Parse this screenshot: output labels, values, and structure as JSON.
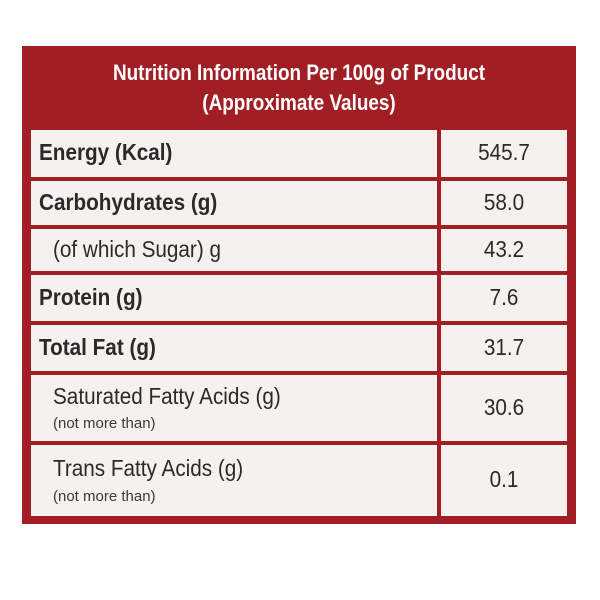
{
  "header": {
    "line1": "Nutrition Information Per 100g of Product",
    "line2": "(Approximate Values)"
  },
  "rows": [
    {
      "name": "Energy (Kcal)",
      "value": "545.7"
    },
    {
      "name": "Carbohydrates (g)",
      "value": "58.0"
    },
    {
      "name": "(of which Sugar) g",
      "value": "43.2"
    },
    {
      "name": "Protein (g)",
      "value": "7.6"
    },
    {
      "name": "Total Fat (g)",
      "value": "31.7"
    },
    {
      "name": "Saturated Fatty Acids (g)",
      "note": "(not more than)",
      "value": "30.6"
    },
    {
      "name": "Trans Fatty Acids (g)",
      "note": "(not more than)",
      "value": "0.1"
    }
  ],
  "colors": {
    "brand_red": "#a11f24",
    "cell_bg": "#f4f1ef"
  }
}
